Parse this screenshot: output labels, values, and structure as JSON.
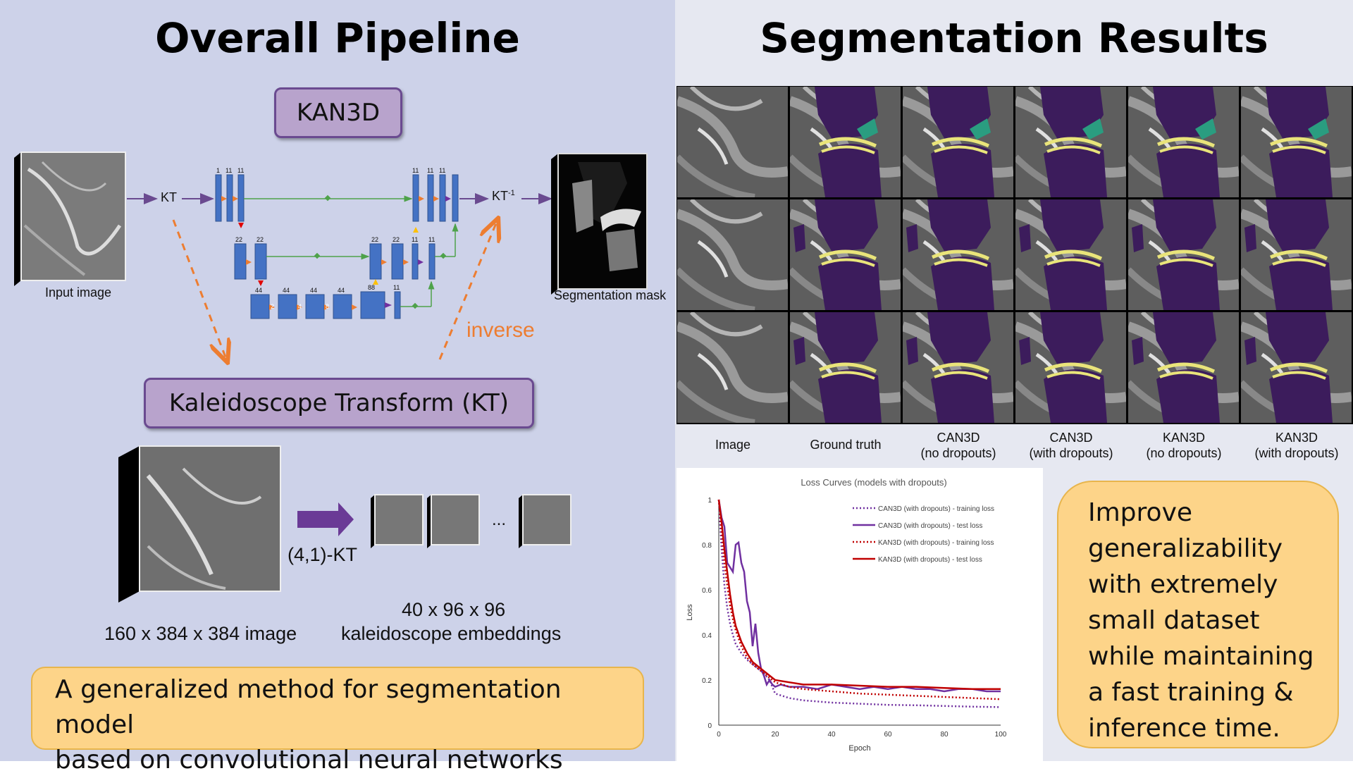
{
  "left": {
    "title": "Overall Pipeline",
    "kan3d_label": "KAN3D",
    "kt_box_label": "Kaleidoscope Transform (KT)",
    "flow": {
      "kt": "KT",
      "kt_inverse": "KT",
      "kt_inverse_sup": "-1",
      "inverse": "inverse",
      "input_image": "Input image",
      "segmentation_mask": "Segmentation mask"
    },
    "unet_numbers": [
      "1",
      "11",
      "11",
      "22",
      "22",
      "44",
      "44",
      "44",
      "44",
      "88",
      "11",
      "22",
      "22",
      "11",
      "11",
      "11",
      "11",
      "11"
    ],
    "unet_mini": [
      "2",
      "4",
      "8"
    ],
    "embedding": {
      "image_size": "160 x 384 x 384 image",
      "kt_param": "(4,1)-KT",
      "ellipsis": "...",
      "embed_line1": "40 x 96 x 96",
      "embed_line2": "kaleidoscope embeddings"
    },
    "summary_line1": "A generalized method for segmentation model",
    "summary_line2": "based on convolutional neural networks"
  },
  "right": {
    "title": "Segmentation Results",
    "columns": [
      {
        "line1": "Image",
        "line2": ""
      },
      {
        "line1": "Ground truth",
        "line2": ""
      },
      {
        "line1": "CAN3D",
        "line2": "(no dropouts)"
      },
      {
        "line1": "CAN3D",
        "line2": "(with dropouts)"
      },
      {
        "line1": "KAN3D",
        "line2": "(no dropouts)"
      },
      {
        "line1": "KAN3D",
        "line2": "(with dropouts)"
      }
    ],
    "callout_lines": [
      "Improve",
      "generalizability",
      "with extremely",
      "small dataset",
      "while maintaining",
      "a fast training &",
      "inference time."
    ],
    "colors": {
      "bone": "#3c1c5c",
      "cartilage": "#e9e47a",
      "meniscus": "#2a9d80"
    }
  },
  "chart_data": {
    "type": "line",
    "title": "Loss Curves (models with dropouts)",
    "xlabel": "Epoch",
    "ylabel": "Loss",
    "xlim": [
      0,
      100
    ],
    "ylim": [
      0,
      1
    ],
    "xticks": [
      "0",
      "20",
      "40",
      "60",
      "80",
      "100"
    ],
    "yticks": [
      "0",
      "0.2",
      "0.4",
      "0.6",
      "0.8",
      "1"
    ],
    "legend_position": "top-right",
    "grid": false,
    "series": [
      {
        "name": "CAN3D (with dropouts) - training loss",
        "color": "#7030a0",
        "style": "dotted",
        "x": [
          0,
          1,
          2,
          3,
          4,
          5,
          6,
          8,
          10,
          12,
          14,
          16,
          18,
          20,
          25,
          30,
          40,
          50,
          60,
          70,
          80,
          90,
          100
        ],
        "y": [
          1,
          0.78,
          0.62,
          0.52,
          0.45,
          0.4,
          0.36,
          0.32,
          0.29,
          0.27,
          0.25,
          0.23,
          0.2,
          0.14,
          0.12,
          0.11,
          0.1,
          0.095,
          0.09,
          0.088,
          0.085,
          0.082,
          0.08
        ]
      },
      {
        "name": "CAN3D (with dropouts) - test loss",
        "color": "#7030a0",
        "style": "solid",
        "x": [
          0,
          1,
          2,
          3,
          4,
          5,
          6,
          7,
          8,
          9,
          10,
          11,
          12,
          13,
          14,
          15,
          16,
          17,
          18,
          19,
          20,
          22,
          25,
          30,
          35,
          40,
          45,
          50,
          55,
          60,
          65,
          70,
          75,
          80,
          85,
          90,
          95,
          100
        ],
        "y": [
          1,
          0.92,
          0.88,
          0.72,
          0.7,
          0.68,
          0.8,
          0.81,
          0.72,
          0.68,
          0.55,
          0.5,
          0.35,
          0.45,
          0.32,
          0.25,
          0.22,
          0.18,
          0.2,
          0.18,
          0.17,
          0.18,
          0.17,
          0.17,
          0.16,
          0.18,
          0.17,
          0.16,
          0.17,
          0.16,
          0.17,
          0.16,
          0.16,
          0.15,
          0.16,
          0.16,
          0.15,
          0.15
        ]
      },
      {
        "name": "KAN3D (with dropouts) - training loss",
        "color": "#c00000",
        "style": "dotted",
        "x": [
          0,
          1,
          2,
          3,
          4,
          5,
          6,
          8,
          10,
          12,
          14,
          16,
          18,
          20,
          25,
          30,
          40,
          50,
          60,
          70,
          80,
          90,
          100
        ],
        "y": [
          1,
          0.86,
          0.72,
          0.62,
          0.53,
          0.47,
          0.42,
          0.35,
          0.3,
          0.27,
          0.25,
          0.23,
          0.21,
          0.19,
          0.17,
          0.16,
          0.15,
          0.14,
          0.135,
          0.13,
          0.125,
          0.12,
          0.115
        ]
      },
      {
        "name": "KAN3D (with dropouts) - test loss",
        "color": "#c00000",
        "style": "solid",
        "x": [
          0,
          1,
          2,
          3,
          4,
          5,
          6,
          8,
          10,
          12,
          14,
          16,
          18,
          20,
          25,
          30,
          40,
          50,
          60,
          70,
          80,
          90,
          100
        ],
        "y": [
          1,
          0.9,
          0.78,
          0.68,
          0.58,
          0.5,
          0.44,
          0.37,
          0.32,
          0.28,
          0.26,
          0.24,
          0.22,
          0.2,
          0.19,
          0.18,
          0.18,
          0.175,
          0.17,
          0.17,
          0.165,
          0.16,
          0.16
        ]
      }
    ]
  }
}
